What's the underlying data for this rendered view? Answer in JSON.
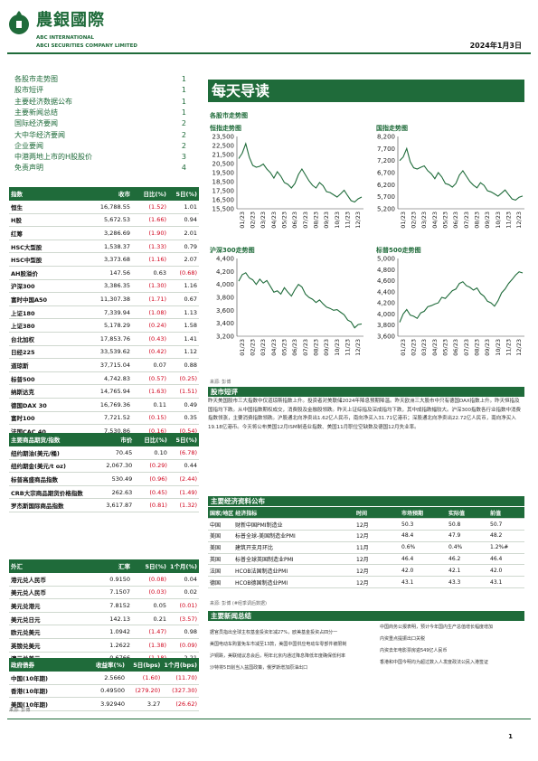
{
  "header": {
    "cn_name": "農銀國際",
    "en_name1": "ABC INTERNATIONAL",
    "en_name2": "ABCI SECURITIES COMPANY LIMITED",
    "date": "2024年1月3日",
    "logo_icon": "abc-leaf-coin-icon",
    "brand_color": "#1f6b3a"
  },
  "toc": [
    {
      "label": "各股市走势图",
      "page": "1"
    },
    {
      "label": "股市短评",
      "page": "1"
    },
    {
      "label": "主要经济数据公布",
      "page": "1"
    },
    {
      "label": "主要新闻总结",
      "page": "1"
    },
    {
      "label": "国际经济要闻",
      "page": "2"
    },
    {
      "label": "大中华经济要闻",
      "page": "2"
    },
    {
      "label": "企业要闻",
      "page": "2"
    },
    {
      "label": "中港两地上市的H股股价",
      "page": "3"
    },
    {
      "label": "免责声明",
      "page": "4"
    }
  ],
  "indices": {
    "headers": [
      "指数",
      "收市",
      "日比(%)",
      "5日(%)"
    ],
    "rows": [
      [
        "恒生",
        "16,788.55",
        "(1.52)",
        "1.01"
      ],
      [
        "H股",
        "5,672.53",
        "(1.66)",
        "0.94"
      ],
      [
        "红筹",
        "3,286.69",
        "(1.90)",
        "2.01"
      ],
      [
        "HSC大型股",
        "1,538.37",
        "(1.33)",
        "0.79"
      ],
      [
        "HSC中型股",
        "3,373.68",
        "(1.16)",
        "2.07"
      ],
      [
        "AH股溢价",
        "147.56",
        "0.63",
        "(0.68)"
      ],
      [
        "沪深300",
        "3,386.35",
        "(1.30)",
        "1.16"
      ],
      [
        "富时中国A50",
        "11,307.38",
        "(1.71)",
        "0.67"
      ],
      [
        "上证180",
        "7,339.94",
        "(1.08)",
        "1.13"
      ],
      [
        "上证380",
        "5,178.29",
        "(0.24)",
        "1.58"
      ],
      [
        "台北加权",
        "17,853.76",
        "(0.43)",
        "1.41"
      ],
      [
        "日经225",
        "33,539.62",
        "(0.42)",
        "1.12"
      ],
      [
        "道琼斯",
        "37,715.04",
        "0.07",
        "0.88"
      ],
      [
        "标普500",
        "4,742.83",
        "(0.57)",
        "(0.25)"
      ],
      [
        "纳斯达克",
        "14,765.94",
        "(1.63)",
        "(1.51)"
      ],
      [
        "德国DAX 30",
        "16,769.36",
        "0.11",
        "0.49"
      ],
      [
        "富时100",
        "7,721.52",
        "(0.15)",
        "0.35"
      ],
      [
        "法国CAC 40",
        "7,530.86",
        "(0.16)",
        "(0.54)"
      ]
    ]
  },
  "commodities": {
    "headers": [
      "主要商品期货/指数",
      "市价",
      "日比(%)",
      "5日(%)"
    ],
    "rows": [
      [
        "纽约期油(美元/桶)",
        "70.45",
        "0.10",
        "(6.78)"
      ],
      [
        "纽约期金(美元/t oz)",
        "2,067.30",
        "(0.29)",
        "0.44"
      ],
      [
        "标普高盛商品指数",
        "530.49",
        "(0.96)",
        "(2.44)"
      ],
      [
        "CRB大宗商品期货价格指数",
        "262.63",
        "(0.45)",
        "(1.49)"
      ],
      [
        "罗杰斯国际商品指数",
        "3,617.87",
        "(0.81)",
        "(1.32)"
      ]
    ]
  },
  "fx": {
    "headers": [
      "外汇",
      "汇率",
      "5日(%)",
      "1个月(%)"
    ],
    "rows": [
      [
        "港元兑人民币",
        "0.9150",
        "(0.08)",
        "0.04"
      ],
      [
        "美元兑人民币",
        "7.1507",
        "(0.03)",
        "0.02"
      ],
      [
        "美元兑港元",
        "7.8152",
        "0.05",
        "(0.01)"
      ],
      [
        "美元兑日元",
        "142.13",
        "0.21",
        "(3.57)"
      ],
      [
        "欧元兑美元",
        "1.0942",
        "(1.47)",
        "0.98"
      ],
      [
        "英镑兑美元",
        "1.2622",
        "(1.38)",
        "(0.09)"
      ],
      [
        "澳元兑美元",
        "0.6766",
        "(1.18)",
        "2.21"
      ]
    ]
  },
  "bonds": {
    "headers": [
      "政府债券",
      "收益率(%)",
      "5日(bps)",
      "1个月(bps)"
    ],
    "rows": [
      [
        "中国(10年期)",
        "2.5660",
        "(1.60)",
        "(11.70)"
      ],
      [
        "香港(10年期)",
        "0.49500",
        "(279.20)",
        "(327.30)"
      ],
      [
        "美国(10年期)",
        "3.92940",
        "3.27",
        "(26.62)"
      ]
    ]
  },
  "left_source": "来源: 彭博",
  "main_title": "每天导读",
  "charts_section_title": "各股市走势图",
  "chart_data": [
    {
      "type": "line",
      "title": "恒指走势图",
      "x_ticks": [
        "01/23",
        "02/23",
        "03/23",
        "04/23",
        "05/23",
        "06/23",
        "07/23",
        "08/23",
        "09/23",
        "10/23",
        "11/23",
        "12/23"
      ],
      "y_ticks": [
        15500,
        16500,
        17500,
        18500,
        19500,
        20500,
        21500,
        22500,
        23500
      ],
      "ylim": [
        15500,
        23500
      ],
      "values": [
        21050,
        21650,
        22700,
        21200,
        20300,
        20100,
        20200,
        20450,
        19900,
        19500,
        18900,
        19600,
        19100,
        18400,
        18200,
        17800,
        18300,
        19300,
        19900,
        19250,
        18600,
        18100,
        17800,
        18400,
        18050,
        17400,
        17300,
        17050,
        16800,
        17150,
        17550,
        16950,
        16400,
        16250,
        16600,
        16800
      ]
    },
    {
      "type": "line",
      "title": "国指走势图",
      "x_ticks": [
        "01/23",
        "02/23",
        "03/23",
        "04/23",
        "05/23",
        "06/23",
        "07/23",
        "08/23",
        "09/23",
        "10/23",
        "11/23",
        "12/23"
      ],
      "y_ticks": [
        5200,
        5700,
        6200,
        6700,
        7200,
        7700,
        8200
      ],
      "ylim": [
        5200,
        8200
      ],
      "values": [
        7200,
        7350,
        7700,
        7150,
        6900,
        6850,
        6920,
        6980,
        6780,
        6650,
        6450,
        6700,
        6520,
        6250,
        6200,
        6100,
        6250,
        6600,
        6780,
        6550,
        6330,
        6180,
        6070,
        6280,
        6170,
        5950,
        5900,
        5820,
        5720,
        5850,
        5980,
        5790,
        5610,
        5560,
        5680,
        5730
      ]
    },
    {
      "type": "line",
      "title": "沪深300走势图",
      "x_ticks": [
        "01/23",
        "02/23",
        "03/23",
        "04/23",
        "05/23",
        "06/23",
        "07/23",
        "08/23",
        "09/23",
        "10/23",
        "11/23",
        "12/23"
      ],
      "y_ticks": [
        3200,
        3400,
        3600,
        3800,
        4000,
        4200,
        4400
      ],
      "ylim": [
        3200,
        4400
      ],
      "values": [
        4050,
        4150,
        4180,
        4100,
        4070,
        4000,
        4080,
        4020,
        4060,
        3970,
        3880,
        3900,
        3850,
        3950,
        3880,
        3820,
        3920,
        4000,
        3960,
        3850,
        3800,
        3770,
        3720,
        3760,
        3700,
        3650,
        3630,
        3600,
        3610,
        3570,
        3530,
        3450,
        3420,
        3330,
        3380,
        3390
      ]
    },
    {
      "type": "line",
      "title": "标普500走势图",
      "x_ticks": [
        "01/23",
        "02/23",
        "03/23",
        "04/23",
        "05/23",
        "06/23",
        "07/23",
        "08/23",
        "09/23",
        "10/23",
        "11/23",
        "12/23"
      ],
      "y_ticks": [
        3600,
        3800,
        4000,
        4200,
        4400,
        4600,
        4800,
        5000
      ],
      "ylim": [
        3600,
        5000
      ],
      "values": [
        3850,
        4000,
        4080,
        3980,
        3960,
        3920,
        4020,
        4050,
        4130,
        4150,
        4180,
        4200,
        4300,
        4280,
        4350,
        4420,
        4450,
        4550,
        4580,
        4510,
        4480,
        4430,
        4470,
        4370,
        4320,
        4230,
        4200,
        4140,
        4240,
        4380,
        4450,
        4550,
        4620,
        4700,
        4760,
        4740
      ]
    }
  ],
  "chart_source": "来源: 彭博",
  "commentary_title": "股市短评",
  "commentary": "昨天美国股市三大指数中仅道琼斯指数上升。投资者对美联储2024年降息预期降温。昨天欧洲三大股市中只有德国DAX指数上升。昨天恒指及国指均下跌。从中国指数期权成交，消费股及金融股领跌。昨天上证综指及深成指均下跌，其中成指跌幅较大。沪深300指数各行业指数中消费指数领涨，主要消费指数领跌。沪股通北向净卖出1.62亿人民币，南向净买入31.71亿港币；深股通北向净卖出22.72亿人民币，南向净买入19.18亿港币。今天将公布美国12月ISM制造业指数、美国11月职位空缺数及德国12月失业率。",
  "econ": {
    "title": "主要经济资料公布",
    "headers": [
      "国家/地区 经济指标",
      "时间",
      "市场预期",
      "实际值",
      "前值"
    ],
    "rows": [
      [
        "中国",
        "财新中国PMI制造业",
        "12月",
        "50.3",
        "50.8",
        "50.7"
      ],
      [
        "美国",
        "标普全球-美国制造业PMI",
        "12月",
        "48.4",
        "47.9",
        "48.2"
      ],
      [
        "美国",
        "建筑开支月环比",
        "11月",
        "0.6%",
        "0.4%",
        "1.2%#"
      ],
      [
        "英国",
        "标普全球英国制造业PMI",
        "12月",
        "46.4",
        "46.2",
        "46.4"
      ],
      [
        "法国",
        "HCOB法国制造业PMI",
        "12月",
        "42.0",
        "42.1",
        "42.0"
      ],
      [
        "德国",
        "HCOB德国制造业PMI",
        "12月",
        "43.1",
        "43.3",
        "43.1"
      ]
    ],
    "source": "来源: 彭博 (#经季调后数据)"
  },
  "news": {
    "title": "主要新闻总结",
    "left": [
      "据官员指出全球主权基金投资年减27%，欧美基金投资占四分一",
      "美国电动车购置免车市减至13款，美国中国供应电动车零部件被限制",
      "沪铜跌，美联储议息会后，明年北京内通过降息降低年度确保低利率",
      "沙特将5日削当入盆国政策，俄罗斯增加原油出口"
    ],
    "right": [
      "中国商务公报表明，预计今年国内生产总值增长幅度增加",
      "内资重点提振出口关税",
      "内资去年电影票房逾549亿人民币",
      "香港和中国今明均为超过数入人发度政法公民入港签证"
    ]
  },
  "page_number": "1"
}
